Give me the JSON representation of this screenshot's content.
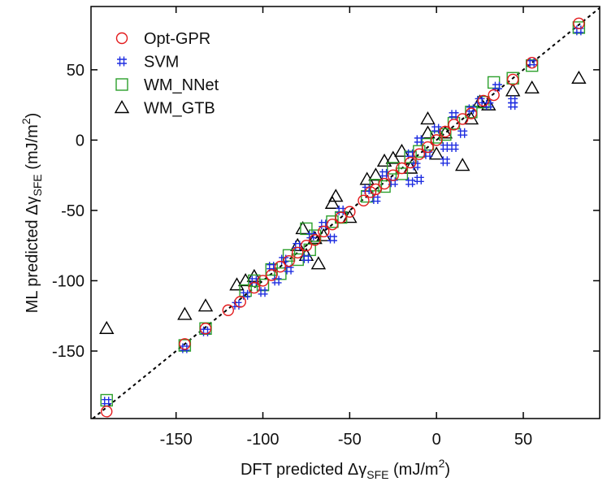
{
  "chart_data": {
    "type": "scatter",
    "x_label": {
      "main": "DFT predicted Δγ",
      "sub": "SFE",
      "unit": " (mJ/m",
      "sup": "2",
      "end": ")"
    },
    "y_label": {
      "main": "ML predicted Δγ",
      "sub": "SFE",
      "unit": " (mJ/m",
      "sup": "2",
      "end": ")"
    },
    "xlim": [
      -199,
      94
    ],
    "ylim": [
      -198,
      95
    ],
    "xticks": [
      -150,
      -100,
      -50,
      0,
      50
    ],
    "yticks": [
      -150,
      -100,
      -50,
      0,
      50
    ],
    "diagonal": true,
    "legend": "upper-left",
    "series": [
      {
        "name": "Opt-GPR",
        "color": "#e31a1c",
        "marker": "circle",
        "x": [
          -190,
          -145,
          -133,
          -120,
          -113,
          -105,
          -100,
          -95,
          -90,
          -85,
          -80,
          -75,
          -70,
          -65,
          -60,
          -55,
          -50,
          -42,
          -38,
          -35,
          -30,
          -25,
          -20,
          -15,
          -10,
          -5,
          0,
          5,
          10,
          15,
          20,
          27,
          33,
          44,
          55,
          82
        ],
        "y": [
          -193,
          -145,
          -134,
          -121,
          -115,
          -105,
          -100,
          -96,
          -90,
          -86,
          -80,
          -75,
          -71,
          -65,
          -60,
          -55,
          -51,
          -43,
          -37,
          -35,
          -31,
          -25,
          -20,
          -16,
          -10,
          -5,
          0,
          6,
          11,
          15,
          19,
          28,
          32,
          43,
          55,
          83
        ]
      },
      {
        "name": "SVM",
        "color": "#1f2ee0",
        "marker": "hash",
        "x": [
          -190,
          -145,
          -133,
          -115,
          -110,
          -105,
          -100,
          -95,
          -92,
          -88,
          -85,
          -80,
          -75,
          -72,
          -65,
          -60,
          -55,
          -40,
          -35,
          -30,
          -25,
          -15,
          -12,
          -10,
          -5,
          0,
          5,
          10,
          15,
          20,
          25,
          30,
          35,
          44,
          44,
          55,
          82,
          -15,
          -10,
          5,
          10
        ],
        "y": [
          -186,
          -148,
          -136,
          -117,
          -110,
          -100,
          -108,
          -90,
          -100,
          -85,
          -92,
          -75,
          -84,
          -68,
          -60,
          -70,
          -50,
          -35,
          -42,
          -24,
          -30,
          -10,
          -18,
          0,
          -10,
          8,
          -5,
          18,
          5,
          22,
          28,
          25,
          38,
          25,
          28,
          55,
          78,
          -30,
          -28,
          -15,
          -5
        ]
      },
      {
        "name": "WM_NNet",
        "color": "#2ca02c",
        "marker": "square",
        "x": [
          -190,
          -145,
          -133,
          -110,
          -105,
          -100,
          -95,
          -90,
          -85,
          -80,
          -75,
          -73,
          -70,
          -60,
          -55,
          -40,
          -35,
          -30,
          -25,
          -20,
          -15,
          -10,
          -5,
          0,
          5,
          10,
          20,
          27,
          33,
          44,
          55,
          82
        ],
        "y": [
          -185,
          -146,
          -134,
          -107,
          -100,
          -103,
          -92,
          -95,
          -82,
          -85,
          -63,
          -78,
          -68,
          -58,
          -55,
          -40,
          -32,
          -33,
          -20,
          -24,
          -12,
          -8,
          -3,
          2,
          4,
          12,
          20,
          27,
          41,
          44,
          53,
          80
        ]
      },
      {
        "name": "WM_GTB",
        "color": "#000000",
        "marker": "triangle",
        "x": [
          -190,
          -145,
          -133,
          -110,
          -115,
          -105,
          -80,
          -77,
          -75,
          -70,
          -68,
          -65,
          -60,
          -58,
          -50,
          -40,
          -35,
          -30,
          -25,
          -20,
          -15,
          -5,
          -5,
          0,
          5,
          15,
          20,
          25,
          30,
          44,
          55,
          82
        ],
        "y": [
          -134,
          -124,
          -118,
          -100,
          -103,
          -97,
          -75,
          -63,
          -82,
          -70,
          -88,
          -68,
          -45,
          -40,
          -55,
          -28,
          -25,
          -15,
          -13,
          -8,
          -20,
          5,
          15,
          -10,
          5,
          -18,
          15,
          27,
          25,
          35,
          37,
          44
        ]
      }
    ]
  }
}
